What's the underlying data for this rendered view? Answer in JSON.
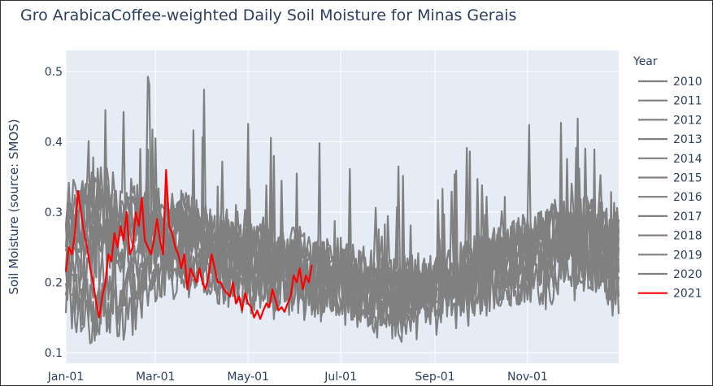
{
  "chart_data": {
    "type": "line",
    "title": "Gro ArabicaCoffee-weighted Daily Soil Moisture for Minas Gerais",
    "xlabel": "",
    "ylabel": "Soil Moisture (source: SMOS)",
    "x_range": [
      "2021-01-01",
      "2021-12-31"
    ],
    "ylim": [
      0.085,
      0.53
    ],
    "x_ticks": [
      {
        "date": "2021-01-01",
        "label": "Jan-01"
      },
      {
        "date": "2021-03-01",
        "label": "Mar-01"
      },
      {
        "date": "2021-05-01",
        "label": "May-01"
      },
      {
        "date": "2021-07-01",
        "label": "Jul-01"
      },
      {
        "date": "2021-09-01",
        "label": "Sep-01"
      },
      {
        "date": "2021-11-01",
        "label": "Nov-01"
      }
    ],
    "y_ticks": [
      {
        "value": 0.1,
        "label": "0.1"
      },
      {
        "value": 0.2,
        "label": "0.2"
      },
      {
        "value": 0.3,
        "label": "0.3"
      },
      {
        "value": 0.4,
        "label": "0.4"
      },
      {
        "value": 0.5,
        "label": "0.5"
      }
    ],
    "grid": true,
    "legend": {
      "title": "Year",
      "placement": "right"
    },
    "colors": {
      "history": "#808080",
      "current": "#ff0000",
      "plot_bg": "#e5ecf6",
      "grid": "#ffffff",
      "text": "#2a3f5f"
    },
    "series": [
      {
        "name": "2010",
        "color": "#808080",
        "keypoints": [
          [
            "2021-01-01",
            0.25
          ],
          [
            "2021-01-20",
            0.3
          ],
          [
            "2021-02-10",
            0.27
          ],
          [
            "2021-03-05",
            0.28
          ],
          [
            "2021-03-25",
            0.26
          ],
          [
            "2021-04-20",
            0.24
          ],
          [
            "2021-05-20",
            0.23
          ],
          [
            "2021-06-20",
            0.21
          ],
          [
            "2021-07-20",
            0.2
          ],
          [
            "2021-08-20",
            0.19
          ],
          [
            "2021-09-20",
            0.21
          ],
          [
            "2021-10-20",
            0.23
          ],
          [
            "2021-11-20",
            0.25
          ],
          [
            "2021-12-31",
            0.24
          ]
        ]
      },
      {
        "name": "2011",
        "color": "#808080",
        "keypoints": [
          [
            "2021-01-01",
            0.21
          ],
          [
            "2021-01-25",
            0.26
          ],
          [
            "2021-02-15",
            0.24
          ],
          [
            "2021-03-10",
            0.27
          ],
          [
            "2021-04-05",
            0.25
          ],
          [
            "2021-05-05",
            0.22
          ],
          [
            "2021-06-05",
            0.21
          ],
          [
            "2021-07-05",
            0.19
          ],
          [
            "2021-08-05",
            0.18
          ],
          [
            "2021-09-10",
            0.19
          ],
          [
            "2021-10-10",
            0.22
          ],
          [
            "2021-11-10",
            0.26
          ],
          [
            "2021-12-10",
            0.27
          ],
          [
            "2021-12-31",
            0.22
          ]
        ]
      },
      {
        "name": "2012",
        "color": "#808080",
        "keypoints": [
          [
            "2021-01-01",
            0.18
          ],
          [
            "2021-01-15",
            0.14
          ],
          [
            "2021-02-01",
            0.17
          ],
          [
            "2021-02-20",
            0.2
          ],
          [
            "2021-03-15",
            0.23
          ],
          [
            "2021-04-10",
            0.21
          ],
          [
            "2021-05-10",
            0.2
          ],
          [
            "2021-06-10",
            0.19
          ],
          [
            "2021-07-10",
            0.17
          ],
          [
            "2021-08-10",
            0.16
          ],
          [
            "2021-09-05",
            0.18
          ],
          [
            "2021-10-05",
            0.19
          ],
          [
            "2021-11-05",
            0.21
          ],
          [
            "2021-12-05",
            0.23
          ],
          [
            "2021-12-31",
            0.2
          ]
        ]
      },
      {
        "name": "2013",
        "color": "#808080",
        "keypoints": [
          [
            "2021-01-01",
            0.3
          ],
          [
            "2021-01-12",
            0.35
          ],
          [
            "2021-02-05",
            0.29
          ],
          [
            "2021-03-01",
            0.31
          ],
          [
            "2021-03-30",
            0.29
          ],
          [
            "2021-04-25",
            0.26
          ],
          [
            "2021-05-25",
            0.24
          ],
          [
            "2021-06-25",
            0.22
          ],
          [
            "2021-07-25",
            0.21
          ],
          [
            "2021-08-25",
            0.2
          ],
          [
            "2021-09-25",
            0.23
          ],
          [
            "2021-10-25",
            0.26
          ],
          [
            "2021-11-25",
            0.29
          ],
          [
            "2021-12-31",
            0.28
          ]
        ]
      },
      {
        "name": "2014",
        "color": "#808080",
        "keypoints": [
          [
            "2021-01-01",
            0.2
          ],
          [
            "2021-01-18",
            0.17
          ],
          [
            "2021-02-08",
            0.15
          ],
          [
            "2021-03-01",
            0.19
          ],
          [
            "2021-03-20",
            0.22
          ],
          [
            "2021-04-15",
            0.2
          ],
          [
            "2021-05-15",
            0.19
          ],
          [
            "2021-06-15",
            0.18
          ],
          [
            "2021-07-15",
            0.16
          ],
          [
            "2021-08-15",
            0.15
          ],
          [
            "2021-09-15",
            0.17
          ],
          [
            "2021-10-15",
            0.18
          ],
          [
            "2021-11-15",
            0.2
          ],
          [
            "2021-12-15",
            0.22
          ],
          [
            "2021-12-31",
            0.18
          ]
        ]
      },
      {
        "name": "2015",
        "color": "#808080",
        "keypoints": [
          [
            "2021-01-01",
            0.26
          ],
          [
            "2021-02-01",
            0.28
          ],
          [
            "2021-02-25",
            0.3
          ],
          [
            "2021-03-20",
            0.28
          ],
          [
            "2021-04-15",
            0.26
          ],
          [
            "2021-05-15",
            0.24
          ],
          [
            "2021-06-15",
            0.23
          ],
          [
            "2021-07-15",
            0.2
          ],
          [
            "2021-08-15",
            0.19
          ],
          [
            "2021-09-15",
            0.22
          ],
          [
            "2021-10-15",
            0.25
          ],
          [
            "2021-11-15",
            0.27
          ],
          [
            "2021-12-15",
            0.25
          ],
          [
            "2021-12-31",
            0.26
          ]
        ]
      },
      {
        "name": "2016",
        "color": "#808080",
        "keypoints": [
          [
            "2021-01-01",
            0.28
          ],
          [
            "2021-01-22",
            0.33
          ],
          [
            "2021-02-18",
            0.31
          ],
          [
            "2021-03-12",
            0.3
          ],
          [
            "2021-04-08",
            0.28
          ],
          [
            "2021-05-08",
            0.26
          ],
          [
            "2021-06-08",
            0.24
          ],
          [
            "2021-07-08",
            0.22
          ],
          [
            "2021-08-08",
            0.2
          ],
          [
            "2021-09-08",
            0.21
          ],
          [
            "2021-10-08",
            0.24
          ],
          [
            "2021-11-08",
            0.27
          ],
          [
            "2021-12-08",
            0.28
          ],
          [
            "2021-12-31",
            0.27
          ]
        ]
      },
      {
        "name": "2017",
        "color": "#808080",
        "keypoints": [
          [
            "2021-01-01",
            0.22
          ],
          [
            "2021-01-28",
            0.2
          ],
          [
            "2021-02-22",
            0.23
          ],
          [
            "2021-03-18",
            0.25
          ],
          [
            "2021-04-12",
            0.23
          ],
          [
            "2021-05-12",
            0.21
          ],
          [
            "2021-06-12",
            0.2
          ],
          [
            "2021-07-12",
            0.18
          ],
          [
            "2021-08-12",
            0.17
          ],
          [
            "2021-09-12",
            0.19
          ],
          [
            "2021-10-12",
            0.2
          ],
          [
            "2021-11-12",
            0.23
          ],
          [
            "2021-12-12",
            0.24
          ],
          [
            "2021-12-31",
            0.21
          ]
        ]
      },
      {
        "name": "2018",
        "color": "#808080",
        "keypoints": [
          [
            "2021-01-01",
            0.24
          ],
          [
            "2021-01-30",
            0.27
          ],
          [
            "2021-02-25",
            0.26
          ],
          [
            "2021-03-22",
            0.29
          ],
          [
            "2021-04-18",
            0.25
          ],
          [
            "2021-05-18",
            0.23
          ],
          [
            "2021-06-18",
            0.22
          ],
          [
            "2021-07-18",
            0.21
          ],
          [
            "2021-08-18",
            0.19
          ],
          [
            "2021-09-18",
            0.2
          ],
          [
            "2021-10-18",
            0.24
          ],
          [
            "2021-11-18",
            0.26
          ],
          [
            "2021-12-18",
            0.27
          ],
          [
            "2021-12-31",
            0.25
          ]
        ]
      },
      {
        "name": "2019",
        "color": "#808080",
        "keypoints": [
          [
            "2021-01-01",
            0.19
          ],
          [
            "2021-01-20",
            0.16
          ],
          [
            "2021-02-12",
            0.2
          ],
          [
            "2021-03-08",
            0.22
          ],
          [
            "2021-04-02",
            0.21
          ],
          [
            "2021-05-02",
            0.19
          ],
          [
            "2021-06-02",
            0.18
          ],
          [
            "2021-07-02",
            0.18
          ],
          [
            "2021-08-02",
            0.17
          ],
          [
            "2021-09-02",
            0.18
          ],
          [
            "2021-10-02",
            0.21
          ],
          [
            "2021-11-02",
            0.24
          ],
          [
            "2021-12-02",
            0.23
          ],
          [
            "2021-12-31",
            0.2
          ]
        ]
      },
      {
        "name": "2020",
        "color": "#808080",
        "keypoints": [
          [
            "2021-01-01",
            0.27
          ],
          [
            "2021-01-25",
            0.31
          ],
          [
            "2021-02-15",
            0.28
          ],
          [
            "2021-03-10",
            0.27
          ],
          [
            "2021-04-05",
            0.25
          ],
          [
            "2021-05-05",
            0.24
          ],
          [
            "2021-06-05",
            0.22
          ],
          [
            "2021-07-05",
            0.2
          ],
          [
            "2021-08-05",
            0.19
          ],
          [
            "2021-09-05",
            0.2
          ],
          [
            "2021-10-05",
            0.23
          ],
          [
            "2021-11-05",
            0.25
          ],
          [
            "2021-12-05",
            0.29
          ],
          [
            "2021-12-31",
            0.26
          ]
        ]
      },
      {
        "name": "2021",
        "color": "#ff0000",
        "points": [
          [
            "2021-01-01",
            0.215
          ],
          [
            "2021-01-03",
            0.25
          ],
          [
            "2021-01-05",
            0.24
          ],
          [
            "2021-01-07",
            0.27
          ],
          [
            "2021-01-09",
            0.33
          ],
          [
            "2021-01-11",
            0.3
          ],
          [
            "2021-01-13",
            0.27
          ],
          [
            "2021-01-15",
            0.25
          ],
          [
            "2021-01-17",
            0.22
          ],
          [
            "2021-01-19",
            0.2
          ],
          [
            "2021-01-21",
            0.17
          ],
          [
            "2021-01-23",
            0.15
          ],
          [
            "2021-01-25",
            0.18
          ],
          [
            "2021-01-27",
            0.2
          ],
          [
            "2021-01-29",
            0.24
          ],
          [
            "2021-01-31",
            0.23
          ],
          [
            "2021-02-02",
            0.27
          ],
          [
            "2021-02-04",
            0.25
          ],
          [
            "2021-02-06",
            0.28
          ],
          [
            "2021-02-08",
            0.26
          ],
          [
            "2021-02-10",
            0.3
          ],
          [
            "2021-02-12",
            0.24
          ],
          [
            "2021-02-14",
            0.25
          ],
          [
            "2021-02-16",
            0.3
          ],
          [
            "2021-02-18",
            0.28
          ],
          [
            "2021-02-20",
            0.32
          ],
          [
            "2021-02-22",
            0.26
          ],
          [
            "2021-02-24",
            0.25
          ],
          [
            "2021-02-26",
            0.24
          ],
          [
            "2021-02-28",
            0.26
          ],
          [
            "2021-03-02",
            0.29
          ],
          [
            "2021-03-04",
            0.26
          ],
          [
            "2021-03-06",
            0.24
          ],
          [
            "2021-03-08",
            0.36
          ],
          [
            "2021-03-10",
            0.28
          ],
          [
            "2021-03-12",
            0.27
          ],
          [
            "2021-03-14",
            0.25
          ],
          [
            "2021-03-16",
            0.24
          ],
          [
            "2021-03-18",
            0.22
          ],
          [
            "2021-03-20",
            0.24
          ],
          [
            "2021-03-22",
            0.19
          ],
          [
            "2021-03-24",
            0.22
          ],
          [
            "2021-03-26",
            0.21
          ],
          [
            "2021-03-28",
            0.2
          ],
          [
            "2021-03-30",
            0.22
          ],
          [
            "2021-04-01",
            0.2
          ],
          [
            "2021-04-03",
            0.19
          ],
          [
            "2021-04-05",
            0.21
          ],
          [
            "2021-04-07",
            0.24
          ],
          [
            "2021-04-09",
            0.22
          ],
          [
            "2021-04-11",
            0.2
          ],
          [
            "2021-04-13",
            0.2
          ],
          [
            "2021-04-15",
            0.19
          ],
          [
            "2021-04-17",
            0.185
          ],
          [
            "2021-04-19",
            0.18
          ],
          [
            "2021-04-21",
            0.2
          ],
          [
            "2021-04-23",
            0.17
          ],
          [
            "2021-04-25",
            0.18
          ],
          [
            "2021-04-27",
            0.16
          ],
          [
            "2021-04-29",
            0.185
          ],
          [
            "2021-05-01",
            0.17
          ],
          [
            "2021-05-03",
            0.165
          ],
          [
            "2021-05-05",
            0.15
          ],
          [
            "2021-05-07",
            0.16
          ],
          [
            "2021-05-09",
            0.148
          ],
          [
            "2021-05-11",
            0.16
          ],
          [
            "2021-05-13",
            0.17
          ],
          [
            "2021-05-15",
            0.165
          ],
          [
            "2021-05-17",
            0.19
          ],
          [
            "2021-05-19",
            0.175
          ],
          [
            "2021-05-21",
            0.16
          ],
          [
            "2021-05-23",
            0.165
          ],
          [
            "2021-05-25",
            0.158
          ],
          [
            "2021-05-27",
            0.17
          ],
          [
            "2021-05-29",
            0.18
          ],
          [
            "2021-05-31",
            0.21
          ],
          [
            "2021-06-02",
            0.2
          ],
          [
            "2021-06-04",
            0.22
          ],
          [
            "2021-06-06",
            0.19
          ],
          [
            "2021-06-08",
            0.21
          ],
          [
            "2021-06-10",
            0.2
          ],
          [
            "2021-06-12",
            0.225
          ]
        ]
      }
    ]
  }
}
